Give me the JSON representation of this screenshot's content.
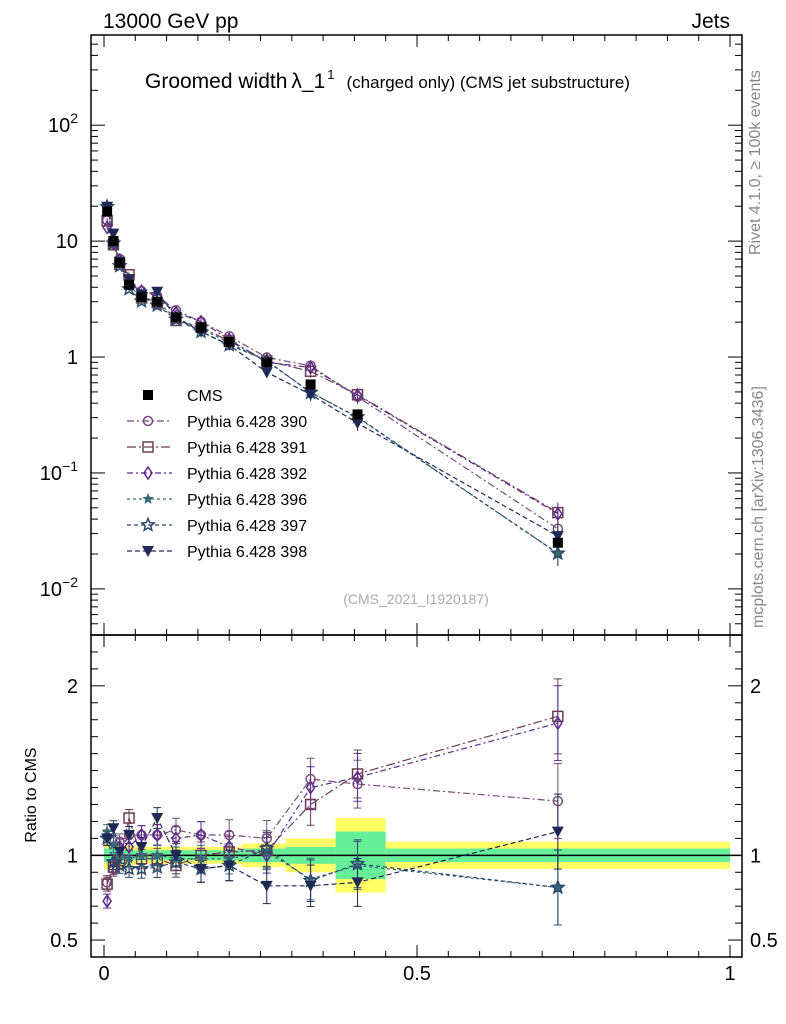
{
  "header": {
    "left": "13000 GeV pp",
    "right": "Jets",
    "side_top": "Rivet 4.1.0, ≥ 100k events",
    "side_bottom": "mcplots.cern.ch [arXiv:1306.3436]"
  },
  "title": {
    "main": "Groomed width",
    "lambda": "λ_1",
    "sup": "1",
    "sub": "(charged only) (CMS jet substructure)"
  },
  "analysis_id": "(CMS_2021_I1920187)",
  "ratio_ylabel": "Ratio to CMS",
  "colors": {
    "data": "#000000",
    "p390": "#7a4a7e",
    "p391": "#6e3c58",
    "p392": "#5a2d8a",
    "p396": "#3a6a78",
    "p397": "#2a4a6a",
    "p398": "#1e2a55",
    "band_yellow": "#ffff66",
    "band_green": "#66ee99"
  },
  "chart_data": {
    "type": "scatter",
    "title": "Groomed width λ_1^1 (charged only) (CMS jet substructure)",
    "xlabel": "",
    "xlim": [
      0,
      1
    ],
    "ylim_main": [
      0.004,
      600
    ],
    "ylim_ratio": [
      0.4,
      2.3
    ],
    "x_ticks": [
      "0",
      "0.5",
      "1"
    ],
    "y_ticks_main": [
      "10^-2",
      "10^-1",
      "1",
      "10",
      "10^2"
    ],
    "y_ticks_ratio": [
      "0.5",
      "1",
      "2"
    ],
    "x": [
      0.005,
      0.015,
      0.025,
      0.04,
      0.06,
      0.085,
      0.115,
      0.155,
      0.2,
      0.26,
      0.33,
      0.405,
      0.725
    ],
    "x_edges": [
      0,
      0.01,
      0.02,
      0.03,
      0.05,
      0.07,
      0.1,
      0.13,
      0.18,
      0.22,
      0.29,
      0.37,
      0.45,
      1.0
    ],
    "data": {
      "name": "CMS",
      "values": [
        18,
        10,
        6.5,
        4.2,
        3.3,
        3.0,
        2.2,
        1.8,
        1.35,
        0.9,
        0.58,
        0.32,
        0.025
      ],
      "band_yellow_halfwidth": [
        0.08,
        0.08,
        0.07,
        0.06,
        0.05,
        0.05,
        0.05,
        0.05,
        0.05,
        0.07,
        0.1,
        0.22,
        0.08
      ],
      "band_green_halfwidth": [
        0.04,
        0.04,
        0.04,
        0.03,
        0.03,
        0.03,
        0.03,
        0.03,
        0.03,
        0.04,
        0.05,
        0.14,
        0.04
      ]
    },
    "series": [
      {
        "name": "Pythia 6.428 390",
        "color_key": "p390",
        "marker": "circle-open",
        "dash": "7,3,2,3",
        "ratio": [
          0.84,
          0.92,
          1.08,
          1.12,
          1.12,
          1.12,
          1.15,
          1.12,
          1.12,
          1.1,
          1.45,
          1.42,
          1.32
        ]
      },
      {
        "name": "Pythia 6.428 391",
        "color_key": "p391",
        "marker": "square-open",
        "dash": "9,3,2,3",
        "ratio": [
          0.83,
          0.93,
          0.97,
          1.22,
          0.98,
          0.98,
          0.94,
          1.0,
          1.02,
          1.03,
          1.3,
          1.48,
          1.82
        ]
      },
      {
        "name": "Pythia 6.428 392",
        "color_key": "p392",
        "marker": "diamond-open",
        "dash": "6,3,2,3",
        "ratio": [
          0.73,
          0.96,
          1.05,
          1.05,
          1.12,
          1.12,
          1.1,
          1.12,
          1.05,
          1.0,
          1.4,
          1.46,
          1.78
        ]
      },
      {
        "name": "Pythia 6.428 396",
        "color_key": "p396",
        "marker": "star-filled",
        "dash": "3,3",
        "ratio": [
          1.14,
          1.06,
          1.0,
          0.98,
          1.0,
          1.0,
          0.98,
          0.98,
          0.98,
          1.02,
          0.86,
          0.94,
          0.81
        ]
      },
      {
        "name": "Pythia 6.428 397",
        "color_key": "p397",
        "marker": "star-open",
        "dash": "4,3",
        "ratio": [
          1.1,
          0.96,
          0.94,
          0.92,
          0.92,
          0.93,
          0.96,
          0.92,
          0.94,
          1.04,
          0.85,
          0.95,
          0.81
        ]
      },
      {
        "name": "Pythia 6.428 398",
        "color_key": "p398",
        "marker": "triangle-down",
        "dash": "5,3",
        "ratio": [
          1.1,
          1.16,
          1.02,
          1.12,
          1.05,
          1.22,
          1.0,
          0.92,
          0.94,
          0.82,
          0.82,
          0.84,
          1.14
        ]
      }
    ]
  }
}
